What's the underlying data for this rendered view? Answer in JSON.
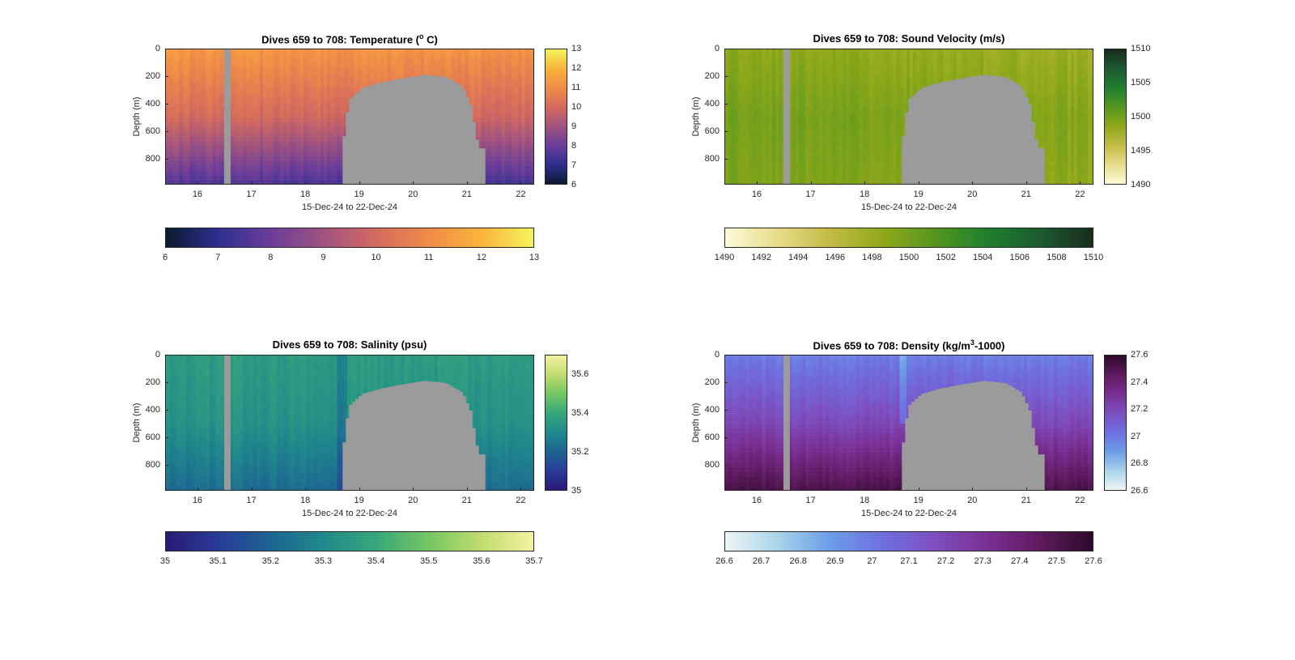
{
  "colors": {
    "mask_gray": "#9b9b9b",
    "axis": "#262626"
  },
  "chart_data": [
    {
      "type": "heatmap",
      "variable": "temperature",
      "title_prefix": "Dives 659 to 708: Temperature (",
      "title_sup": "o",
      "title_suffix": " C)",
      "ylabel": "Depth (m)",
      "xlabel": "15-Dec-24 to 22-Dec-24",
      "x_ticks": [
        "16",
        "17",
        "18",
        "19",
        "20",
        "21",
        "22"
      ],
      "xlim": [
        15.4,
        22.25
      ],
      "y_ticks": [
        "0",
        "200",
        "400",
        "600",
        "800"
      ],
      "ylim": [
        0,
        990
      ],
      "y_reversed": true,
      "clim": [
        6,
        13
      ],
      "colormap": [
        "#0b1a2e",
        "#2e2f8f",
        "#6a3d9a",
        "#a0537f",
        "#d36a5f",
        "#f08b48",
        "#f9b43c",
        "#f4f35a"
      ],
      "vbar_ticks": [
        "13",
        "12",
        "11",
        "10",
        "9",
        "8",
        "7",
        "6"
      ],
      "hbar_ticks": [
        "6",
        "7",
        "8",
        "9",
        "10",
        "11",
        "12",
        "13"
      ],
      "field": {
        "top": 11.3,
        "mid": 10.0,
        "bottom": 7.5,
        "left_offset": 0,
        "right_offset": -0.3
      },
      "gap_x": [
        16.48,
        16.6
      ],
      "shallow_profile": false
    },
    {
      "type": "heatmap",
      "variable": "sound_velocity",
      "title_prefix": "Dives 659 to 708: Sound Velocity (m/s)",
      "title_sup": "",
      "title_suffix": "",
      "ylabel": "Depth (m)",
      "xlabel": "15-Dec-24 to 22-Dec-24",
      "x_ticks": [
        "16",
        "17",
        "18",
        "19",
        "20",
        "21",
        "22"
      ],
      "xlim": [
        15.4,
        22.25
      ],
      "y_ticks": [
        "0",
        "200",
        "400",
        "600",
        "800"
      ],
      "ylim": [
        0,
        990
      ],
      "y_reversed": true,
      "clim": [
        1490,
        1510
      ],
      "colormap": [
        "#fdfbd8",
        "#e7dc8a",
        "#c3bb44",
        "#8fa81a",
        "#55961f",
        "#1f7f2e",
        "#1c5a32",
        "#182c1c"
      ],
      "vbar_ticks": [
        "1510",
        "1505",
        "1500",
        "1495",
        "1490"
      ],
      "hbar_ticks": [
        "1490",
        "1492",
        "1494",
        "1496",
        "1498",
        "1500",
        "1502",
        "1504",
        "1506",
        "1508",
        "1510"
      ],
      "field": {
        "top": 1498.2,
        "mid": 1499.5,
        "bottom": 1499.0,
        "left_offset": 0.6,
        "right_offset": -0.5
      },
      "gap_x": [
        16.48,
        16.6
      ],
      "shallow_profile": false
    },
    {
      "type": "heatmap",
      "variable": "salinity",
      "title_prefix": "Dives 659 to 708: Salinity (psu)",
      "title_sup": "",
      "title_suffix": "",
      "ylabel": "Depth (m)",
      "xlabel": "15-Dec-24 to 22-Dec-24",
      "x_ticks": [
        "16",
        "17",
        "18",
        "19",
        "20",
        "21",
        "22"
      ],
      "xlim": [
        15.4,
        22.25
      ],
      "y_ticks": [
        "0",
        "200",
        "400",
        "600",
        "800"
      ],
      "ylim": [
        0,
        990
      ],
      "y_reversed": true,
      "clim": [
        35,
        35.7
      ],
      "colormap": [
        "#2a1a74",
        "#273c98",
        "#1e6492",
        "#1f8a8b",
        "#37a77b",
        "#74c663",
        "#bfdd6e",
        "#f6f1a3"
      ],
      "vbar_ticks": [
        "35.6",
        "35.4",
        "35.2",
        "35"
      ],
      "hbar_ticks": [
        "35",
        "35.1",
        "35.2",
        "35.3",
        "35.4",
        "35.5",
        "35.6",
        "35.7"
      ],
      "field": {
        "top": 35.36,
        "mid": 35.33,
        "bottom": 35.22,
        "left_offset": 0.0,
        "right_offset": 0.0
      },
      "gap_x": [
        16.48,
        16.6
      ],
      "shallow_profile": true
    },
    {
      "type": "heatmap",
      "variable": "density",
      "title_prefix": "Dives 659 to 708: Density (kg/m",
      "title_sup": "3",
      "title_suffix": "-1000)",
      "ylabel": "Depth (m)",
      "xlabel": "15-Dec-24 to 22-Dec-24",
      "x_ticks": [
        "16",
        "17",
        "18",
        "19",
        "20",
        "21",
        "22"
      ],
      "xlim": [
        15.4,
        22.25
      ],
      "y_ticks": [
        "0",
        "200",
        "400",
        "600",
        "800"
      ],
      "ylim": [
        0,
        990
      ],
      "y_reversed": true,
      "clim": [
        26.6,
        27.6
      ],
      "colormap": [
        "#eef6f5",
        "#a9d4ea",
        "#6b9de6",
        "#6f6fe0",
        "#7d4fc0",
        "#7a2f93",
        "#5e1a5e",
        "#2c0a2a"
      ],
      "vbar_ticks": [
        "27.6",
        "27.4",
        "27.2",
        "27",
        "26.8",
        "26.6"
      ],
      "hbar_ticks": [
        "26.6",
        "26.7",
        "26.8",
        "26.9",
        "27",
        "27.1",
        "27.2",
        "27.3",
        "27.4",
        "27.5",
        "27.6"
      ],
      "field": {
        "top": 26.98,
        "mid": 27.2,
        "bottom": 27.52,
        "left_offset": 0.0,
        "right_offset": 0.0
      },
      "gap_x": [
        16.48,
        16.6
      ],
      "shallow_profile": false
    }
  ]
}
